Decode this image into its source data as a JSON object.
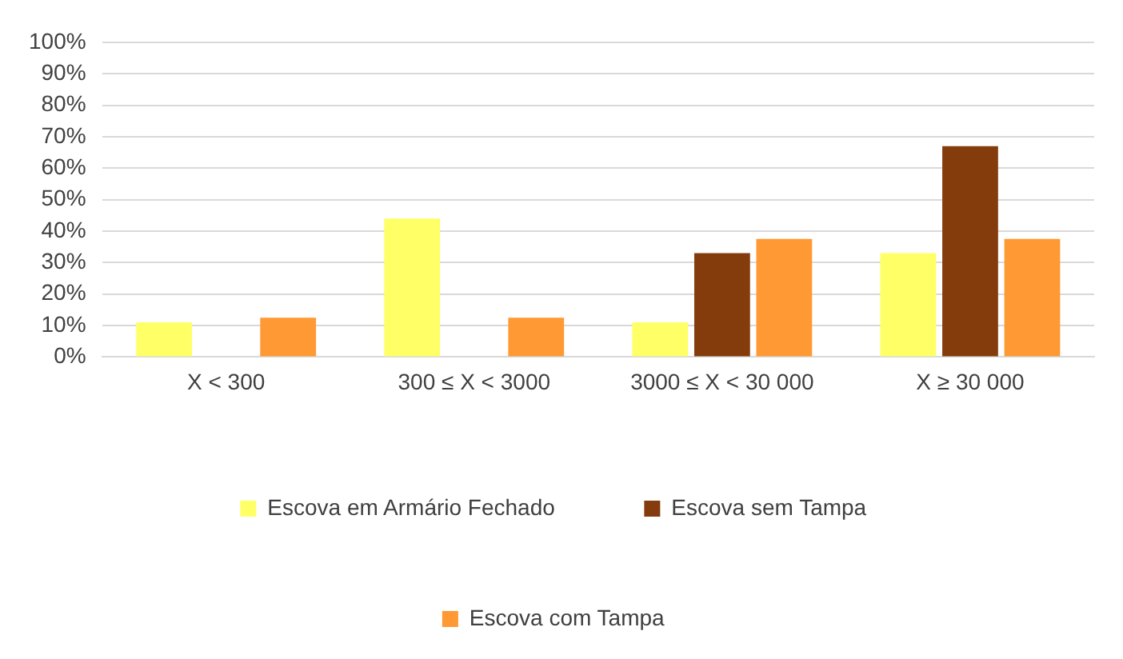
{
  "chart_data": {
    "type": "bar",
    "categories": [
      "X < 300",
      "300 ≤ X < 3000",
      "3000 ≤ X < 30 000",
      "X ≥ 30 000"
    ],
    "series": [
      {
        "name": "Escova em Armário Fechado",
        "color": "#ffff66",
        "values": [
          11,
          44,
          11,
          33
        ]
      },
      {
        "name": "Escova sem Tampa",
        "color": "#843c0c",
        "values": [
          0,
          0,
          33,
          67
        ]
      },
      {
        "name": "Escova com Tampa",
        "color": "#ff9933",
        "values": [
          12.5,
          12.5,
          37.5,
          37.5
        ]
      }
    ],
    "ylim": [
      0,
      100
    ],
    "yticks": [
      {
        "value": 0,
        "label": "0%"
      },
      {
        "value": 10,
        "label": "10%"
      },
      {
        "value": 20,
        "label": "20%"
      },
      {
        "value": 30,
        "label": "30%"
      },
      {
        "value": 40,
        "label": "40%"
      },
      {
        "value": 50,
        "label": "50%"
      },
      {
        "value": 60,
        "label": "60%"
      },
      {
        "value": 70,
        "label": "70%"
      },
      {
        "value": 80,
        "label": "80%"
      },
      {
        "value": 90,
        "label": "90%"
      },
      {
        "value": 100,
        "label": "100%"
      }
    ],
    "grid": "y",
    "legend": "bottom"
  }
}
